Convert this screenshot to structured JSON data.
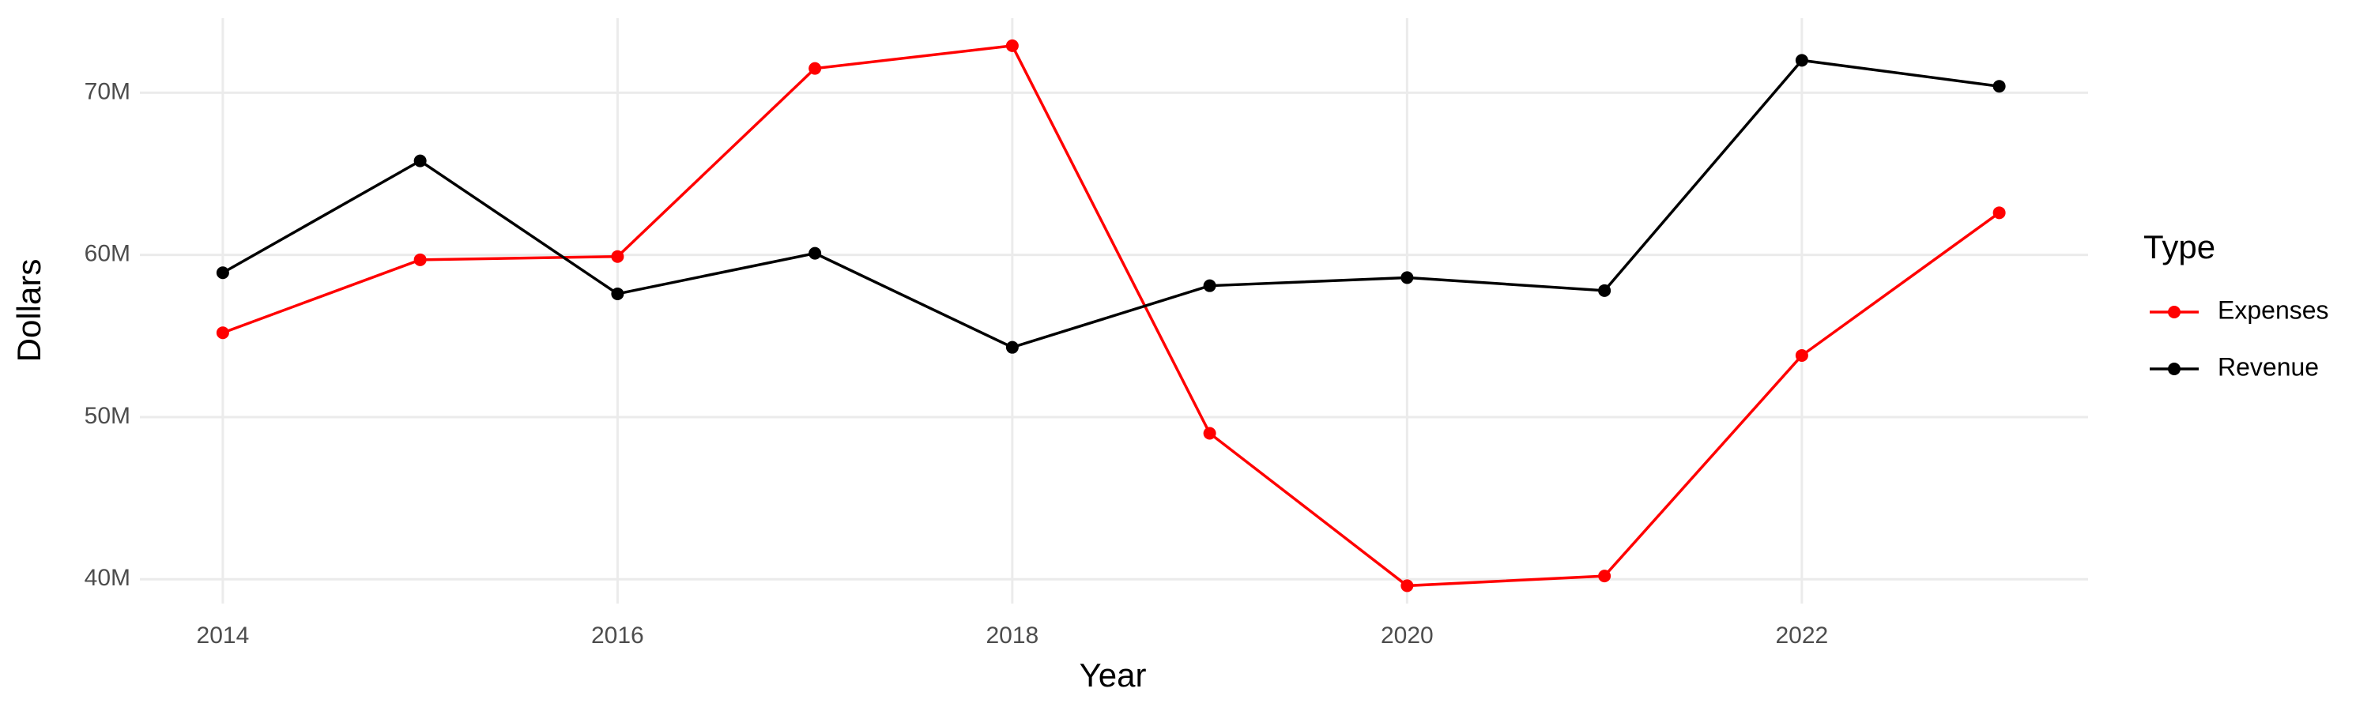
{
  "chart_data": {
    "type": "line",
    "x_label": "Year",
    "y_label": "Dollars",
    "x": [
      2014,
      2015,
      2016,
      2017,
      2018,
      2019,
      2020,
      2021,
      2022,
      2023
    ],
    "series": [
      {
        "name": "Expenses",
        "color": "#ff0000",
        "values": [
          55200000,
          59700000,
          59900000,
          71500000,
          72900000,
          49000000,
          39600000,
          40200000,
          53800000,
          62600000
        ]
      },
      {
        "name": "Revenue",
        "color": "#000000",
        "values": [
          58900000,
          65800000,
          57600000,
          60100000,
          54300000,
          58100000,
          58600000,
          57800000,
          72000000,
          70400000
        ]
      }
    ],
    "xlim": [
      2013.58,
      2023.45
    ],
    "xticks": [
      2014,
      2016,
      2018,
      2020,
      2022
    ],
    "ylim": [
      38500000,
      74600000
    ],
    "yticks": [
      {
        "value": 40000000,
        "label": "40M"
      },
      {
        "value": 50000000,
        "label": "50M"
      },
      {
        "value": 60000000,
        "label": "60M"
      },
      {
        "value": 70000000,
        "label": "70M"
      }
    ],
    "grid": true,
    "legend": {
      "title": "Type",
      "position": "right"
    }
  }
}
